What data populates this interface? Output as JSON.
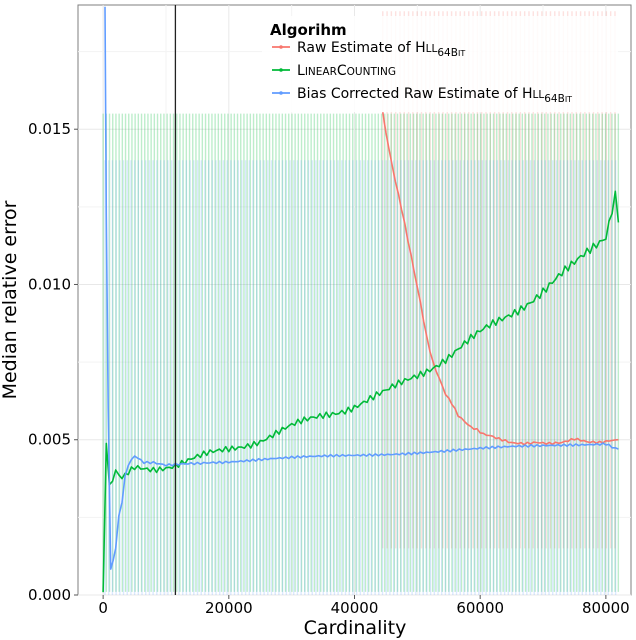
{
  "chart_data": {
    "type": "line",
    "xlabel": "Cardinality",
    "ylabel": "Median relative error",
    "xlim": [
      -4000,
      84000
    ],
    "ylim": [
      0,
      0.019
    ],
    "x_ticks": [
      0,
      20000,
      40000,
      60000,
      80000
    ],
    "x_tick_labels": [
      "0",
      "20000",
      "40000",
      "60000",
      "80000"
    ],
    "y_ticks": [
      0,
      0.005,
      0.01,
      0.015
    ],
    "y_tick_labels": [
      "0.000",
      "0.005",
      "0.010",
      "0.015"
    ],
    "grid": true,
    "vertical_marker_x": 11500,
    "legend": {
      "title": "Algorihm",
      "placement": "top-right",
      "entries": [
        {
          "main": "Raw Estimate of H",
          "smallcaps": "LL",
          "sub": "64B",
          "sub_small": "IT",
          "color": "#F8766D"
        },
        {
          "main": "L",
          "smallcaps": "INEAR",
          "main2": "C",
          "smallcaps2": "OUNTING",
          "color": "#00BA38"
        },
        {
          "main": "Bias Corrected Raw Estimate of H",
          "smallcaps": "LL",
          "sub": "64B",
          "sub_small": "IT",
          "color": "#619CFF"
        }
      ]
    },
    "series": [
      {
        "name": "Raw Estimate of HLL64Bit",
        "color": "#F8766D",
        "x": [
          44500,
          45500,
          46500,
          47500,
          48500,
          49500,
          50500,
          51500,
          52500,
          53500,
          54500,
          55500,
          56500,
          57500,
          58500,
          59500,
          60500,
          61500,
          63000,
          65000,
          67000,
          69000,
          71000,
          73000,
          75000,
          77000,
          79000,
          81000,
          82000
        ],
        "y": [
          0.0155,
          0.0143,
          0.0133,
          0.0124,
          0.0114,
          0.0104,
          0.0094,
          0.0083,
          0.0075,
          0.007,
          0.0065,
          0.0062,
          0.0058,
          0.0056,
          0.0054,
          0.0053,
          0.00515,
          0.0051,
          0.005,
          0.0049,
          0.0049,
          0.00495,
          0.0049,
          0.0049,
          0.005,
          0.0049,
          0.0049,
          0.005,
          0.005
        ],
        "band_lower": 0.0015,
        "band_upper": 0.0188,
        "band_x": [
          44500,
          82000
        ]
      },
      {
        "name": "LinearCounting",
        "color": "#00BA38",
        "x": [
          0,
          500,
          1000,
          2000,
          3000,
          5000,
          8000,
          11500,
          15000,
          20000,
          25000,
          30000,
          35000,
          40000,
          45000,
          50000,
          55000,
          60000,
          65000,
          70000,
          75000,
          80000,
          81500,
          82000
        ],
        "y": [
          0.0,
          0.0049,
          0.0034,
          0.0039,
          0.0037,
          0.0041,
          0.0041,
          0.0042,
          0.0044,
          0.0047,
          0.005,
          0.0054,
          0.0058,
          0.0061,
          0.0065,
          0.0071,
          0.0077,
          0.0084,
          0.0091,
          0.0098,
          0.0106,
          0.0116,
          0.013,
          0.012
        ],
        "band_lower": 0.0001,
        "band_upper": 0.0155,
        "band_x": [
          0,
          82000
        ]
      },
      {
        "name": "Bias Corrected Raw Estimate of HLL64Bit",
        "color": "#619CFF",
        "x": [
          300,
          500,
          800,
          1200,
          1600,
          2000,
          2500,
          3000,
          3500,
          4000,
          5000,
          6500,
          8000,
          10000,
          15000,
          20000,
          30000,
          40000,
          50000,
          60000,
          70000,
          80000,
          82000
        ],
        "y": [
          0.019,
          0.0122,
          0.006,
          0.0009,
          0.0011,
          0.0015,
          0.0025,
          0.003,
          0.0038,
          0.0042,
          0.0045,
          0.0043,
          0.0043,
          0.0042,
          0.0042,
          0.0043,
          0.0044,
          0.0045,
          0.0046,
          0.0047,
          0.0048,
          0.0049,
          0.0047
        ],
        "band_lower": 0.0,
        "band_upper": 0.014,
        "band_x": [
          300,
          82000
        ]
      }
    ]
  }
}
